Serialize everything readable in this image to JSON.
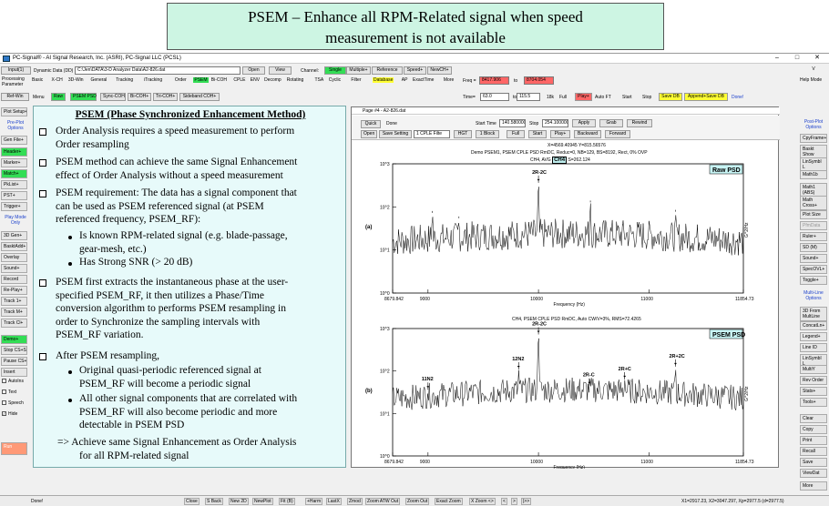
{
  "banner": {
    "line1": "PSEM  – Enhance all RPM-Related signal when speed",
    "line2": "measurement is not available"
  },
  "window": {
    "title": "PC-Signal® - AI Signal Research, Inc. (ASRI), PC-Signal LLC (PCSL)",
    "minimize": "–",
    "maximize": "□",
    "close": "✕"
  },
  "toolbar1": {
    "input": "Input(1)",
    "data_label": "Dynamic Data (DD)",
    "path": "C:\\Jen\\DATA\\3-D Analyzer Data\\A2-826.dat",
    "open": "Open",
    "view": "View",
    "channel_label": "Channel:",
    "single": "Single",
    "multiple": "Multiple+",
    "reference": "Reference",
    "speed": "Speed+",
    "newch": "NewCH+"
  },
  "toolbar2": {
    "processing": "Processing Parameter",
    "items": [
      "Basic",
      "X-CH",
      "3D-Win",
      "General",
      "Tracking",
      "iTracking",
      "Order",
      "PSEM",
      "Bi-COH",
      "CPLE",
      "ENV",
      "Decomp",
      "Rotating",
      "TSA",
      "Cyclic",
      "Filter",
      "Database",
      "AP",
      "ExactTime",
      "More"
    ],
    "freq_label": "Freq =",
    "freq_from": "8417.906",
    "to1": "to",
    "freq_to": "8704.054"
  },
  "toolbar3": {
    "refwin": "Ref-Win",
    "menu": "Menu",
    "raw": "Raw",
    "psem_psd": "PSEM PSD",
    "sync_coh": "Sync-COH",
    "bi_coh": "Bi-COH+",
    "tri_coh": "Tri-COH+",
    "sideband": "Sideband COH+",
    "time_label": "Time=",
    "time_from": "63.0",
    "to2": "to",
    "time_to": "115.5",
    "k18": "18k",
    "full": "Full",
    "play": "Play+",
    "auto_ft": "Auto FT",
    "start": "Start",
    "stop": "Stop",
    "save_db": "Save DB",
    "append_db": "Append+Save DB",
    "done": "Done!"
  },
  "left_panel": {
    "items": [
      "Plot Setup+",
      "Pre-Plot Options",
      "Gen File+",
      "Header+",
      "Marker+",
      "Match+",
      "PkList+",
      "PST+",
      "Trigger+",
      "Play Mode Only",
      "3D Gen+",
      "BasktAdd+",
      "Overlay",
      "Sound+",
      "Record",
      "Re-Play+",
      "Track 1+",
      "Track M+",
      "Track Cl+",
      "Demo+",
      "Stop CS+S",
      "Pause CS+P",
      "Insert",
      "AutoIns",
      "Text",
      "Speech",
      "Hide",
      "Run"
    ]
  },
  "right_panel": {
    "items": [
      "V",
      "Help Mode",
      "Post-Plot Options",
      "CpyFrame+",
      "Baskt Show",
      "LinSymbl L",
      "Math1b",
      "Math1 (ABS)",
      "Math Cross+",
      "Plot Size",
      "PfmData",
      "Ruler+",
      "SD (M)",
      "Sound+",
      "SpecOVL+",
      "Toggle+",
      "Multi-Line Options",
      "3D From MultLine",
      "ConcatLn+",
      "Legend+",
      "Line ID",
      "LinSymbl L",
      "MultiY",
      "Rev Order",
      "Stats+",
      "Tools+",
      "Clear",
      "Copy",
      "Print",
      "Recall",
      "Save",
      "ViewDat",
      "More"
    ]
  },
  "text_panel": {
    "heading": "PSEM (Phase Synchronized Enhancement Method)",
    "b1": [
      "Order Analysis requires a speed measurement to perform",
      "Order resampling"
    ],
    "b2": [
      "PSEM  method can achieve the same Signal Enhancement",
      "effect of Order Analysis without a speed measurement"
    ],
    "b3": [
      "PSEM requirement:  The data has a signal component that",
      "can be used as PSEM referenced signal (at PSEM",
      "referenced frequency, PSEM_RF):"
    ],
    "s1": [
      "Is known RPM-related signal (e.g. blade-passage,",
      "gear-mesh, etc.)"
    ],
    "s2": [
      "Has Strong SNR (> 20 dB)"
    ],
    "b4": [
      "PSEM first extracts the instantaneous phase at the user-",
      "specified PSEM_RF, it then  utilizes a Phase/Time",
      "conversion algorithm to performs PSEM resampling in",
      "order to Synchronize the sampling intervals with",
      "PSEM_RF variation."
    ],
    "b5": [
      "After PSEM resampling,"
    ],
    "s3": [
      "Original quasi-periodic referenced signal at",
      "PSEM_RF  will become a periodic signal"
    ],
    "s4": [
      "All other signal components that are correlated with",
      "PSEM_RF will also become periodic  and more",
      "detectable in PSEM PSD"
    ],
    "arrow": [
      "=> Achieve same Signal Enhancement as Order Analysis",
      "for all RPM-related signal"
    ]
  },
  "plot_window": {
    "title": "Page #4 - A2-826.dat",
    "quick": "Quick",
    "done": "Done",
    "open": "Open",
    "save_setting": "Save Setting",
    "cple": "1 CPLE Filte",
    "hgt": "HGT",
    "start_time_label": "Start Time",
    "start_time": "140.580000",
    "stop_label": "Stop",
    "stop_time": "254.100000",
    "apply": "Apply",
    "grab": "Grab",
    "rewind": "Rewind",
    "one_block": "1 Block",
    "full": "Full",
    "start": "Start",
    "play": "Play+",
    "backward": "Backward",
    "forward": "Forward",
    "cursor": "X=4569.40945  Y=815.56576",
    "header1": "Demo PSEM1, PSEM CPLE PSD RmDC, Reduc=0, NB=129, BS=8192, Rect, 0% OVP",
    "header1b": "CH4, AVG",
    "ch4": "CH4",
    "header1c": "S=262.124",
    "header2": "CH4, PSEM CPLE PSD RmDC, Auto CW/V=3%, RMS=72.4265"
  },
  "status_bar": {
    "left": "Done!",
    "items": [
      "Close",
      "S Back",
      "New 2D",
      "NewPlot",
      "Fit (B)",
      "+Harm",
      "LastX",
      "Zmod",
      "Zoom ATW Out",
      "Zoom Out",
      "Exact Zoom",
      "X Zoom <>",
      "<",
      ">",
      "|>>"
    ],
    "right": "X1=2917.23, X2=3047.297, Xp=2977.5 (d=2977.5)"
  },
  "chart_data": [
    {
      "type": "line",
      "label": "(a)",
      "legend": "Raw PSD",
      "xlabel": "Frequency (Hz)",
      "ylabel": "G^2/Hz",
      "xlim": [
        8679.842,
        11854.73
      ],
      "x_ticks": [
        "8679.842",
        "9000",
        "10000",
        "11000",
        "11854.73"
      ],
      "y_scale": "log",
      "ylim": [
        1,
        1000
      ],
      "y_ticks": [
        "10^0",
        "10^1",
        "10^2",
        "10^3"
      ],
      "annotations": [
        {
          "text": "2R-2C",
          "x": 10000
        }
      ],
      "peaks": [
        {
          "x": 10000,
          "y": 400
        },
        {
          "x": 9040,
          "y": 80
        },
        {
          "x": 9280,
          "y": 60
        },
        {
          "x": 10470,
          "y": 140
        },
        {
          "x": 10760,
          "y": 40
        },
        {
          "x": 11240,
          "y": 85
        }
      ]
    },
    {
      "type": "line",
      "label": "(b)",
      "legend": "PSEM PSD",
      "xlabel": "Frequency (Hz)",
      "ylabel": "G^2/Hz",
      "xlim": [
        8679.842,
        11854.73
      ],
      "x_ticks": [
        "8679.842",
        "9000",
        "10000",
        "11000",
        "11854.73"
      ],
      "y_scale": "log",
      "ylim": [
        1,
        1000
      ],
      "y_ticks": [
        "10^0",
        "10^1",
        "10^2",
        "10^3"
      ],
      "annotations": [
        {
          "text": "2R-2C",
          "x": 10000
        },
        {
          "text": "11N2",
          "x": 9000
        },
        {
          "text": "12N2",
          "x": 9820
        },
        {
          "text": "2R-C",
          "x": 10460
        },
        {
          "text": "2R+C",
          "x": 10780
        },
        {
          "text": "2R+2C",
          "x": 11240
        }
      ],
      "peaks": [
        {
          "x": 10000,
          "y": 800
        },
        {
          "x": 9000,
          "y": 40
        },
        {
          "x": 9820,
          "y": 120
        },
        {
          "x": 10460,
          "y": 50
        },
        {
          "x": 10780,
          "y": 70
        },
        {
          "x": 11240,
          "y": 140
        }
      ]
    }
  ]
}
